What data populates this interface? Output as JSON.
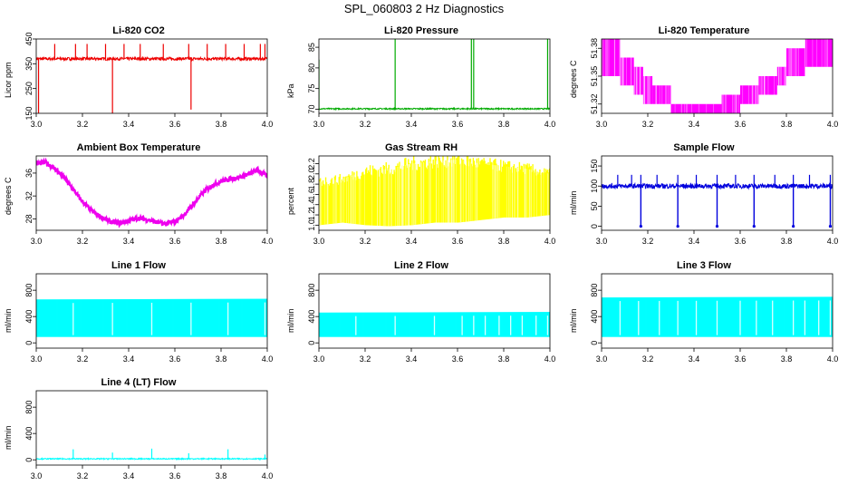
{
  "figure_title": "SPL_060803  2 Hz Diagnostics",
  "colors": {
    "co2": "#ee0000",
    "pressure": "#00aa00",
    "temperature": "#ff00ff",
    "ambient": "#ee00ee",
    "rh": "#ffff00",
    "sample": "#0000dd",
    "line": "#00ffff"
  },
  "chart_data": [
    {
      "id": "co2",
      "type": "line",
      "title": "Li-820 CO2",
      "ylabel": "Licor ppm",
      "x_ticks": [
        "3.0",
        "3.2",
        "3.4",
        "3.6",
        "3.8",
        "4.0"
      ],
      "y_ticks": [
        "150",
        "250",
        "350",
        "450"
      ],
      "xlim": [
        3.0,
        4.0
      ],
      "ylim": [
        150,
        450
      ],
      "color": "#ee0000",
      "series": [
        {
          "name": "CO2",
          "baseline": 370,
          "noise": 6,
          "spikes_up": [
            3.08,
            3.17,
            3.22,
            3.3,
            3.38,
            3.45,
            3.55,
            3.66,
            3.74,
            3.82,
            3.9,
            3.97,
            3.99
          ],
          "spike_top": 430,
          "spikes_down": [
            3.01,
            3.33,
            3.67
          ],
          "spike_bottom": [
            150,
            150,
            165
          ]
        }
      ]
    },
    {
      "id": "pressure",
      "type": "line",
      "title": "Li-820 Pressure",
      "ylabel": "kPa",
      "x_ticks": [
        "3.0",
        "3.2",
        "3.4",
        "3.6",
        "3.8",
        "4.0"
      ],
      "y_ticks": [
        "70",
        "75",
        "80",
        "85"
      ],
      "xlim": [
        3.0,
        4.0
      ],
      "ylim": [
        69,
        87
      ],
      "color": "#00aa00",
      "series": [
        {
          "name": "Pressure",
          "baseline": 70.1,
          "noise": 0.15,
          "spikes_up": [
            3.0,
            3.33,
            3.66,
            3.67,
            3.99
          ],
          "spike_top": [
            82,
            87,
            87,
            87,
            87
          ]
        }
      ]
    },
    {
      "id": "licor_temp",
      "type": "step",
      "title": "Li-820 Temperature",
      "ylabel": "degrees C",
      "x_ticks": [
        "3.0",
        "3.2",
        "3.4",
        "3.6",
        "3.8",
        "4.0"
      ],
      "y_ticks": [
        "51.32",
        "51.35",
        "51.38"
      ],
      "xlim": [
        3.0,
        4.0
      ],
      "ylim": [
        51.31,
        51.39
      ],
      "color": "#ff00ff",
      "levels": [
        {
          "x0": 3.0,
          "x1": 3.08,
          "lo": 51.35,
          "hi": 51.39
        },
        {
          "x0": 3.08,
          "x1": 3.14,
          "lo": 51.34,
          "hi": 51.37
        },
        {
          "x0": 3.14,
          "x1": 3.18,
          "lo": 51.33,
          "hi": 51.36
        },
        {
          "x0": 3.18,
          "x1": 3.22,
          "lo": 51.32,
          "hi": 51.35
        },
        {
          "x0": 3.22,
          "x1": 3.3,
          "lo": 51.32,
          "hi": 51.34
        },
        {
          "x0": 3.3,
          "x1": 3.52,
          "lo": 51.31,
          "hi": 51.32
        },
        {
          "x0": 3.52,
          "x1": 3.6,
          "lo": 51.31,
          "hi": 51.33
        },
        {
          "x0": 3.6,
          "x1": 3.68,
          "lo": 51.32,
          "hi": 51.34
        },
        {
          "x0": 3.68,
          "x1": 3.76,
          "lo": 51.33,
          "hi": 51.35
        },
        {
          "x0": 3.76,
          "x1": 3.8,
          "lo": 51.34,
          "hi": 51.36
        },
        {
          "x0": 3.8,
          "x1": 3.88,
          "lo": 51.35,
          "hi": 51.38
        },
        {
          "x0": 3.88,
          "x1": 4.0,
          "lo": 51.36,
          "hi": 51.39
        }
      ]
    },
    {
      "id": "ambient",
      "type": "line",
      "title": "Ambient Box Temperature",
      "ylabel": "degrees C",
      "x_ticks": [
        "3.0",
        "3.2",
        "3.4",
        "3.6",
        "3.8",
        "4.0"
      ],
      "y_ticks": [
        "28",
        "32",
        "36"
      ],
      "xlim": [
        3.0,
        4.0
      ],
      "ylim": [
        26,
        39
      ],
      "color": "#ee00ee",
      "series": [
        {
          "name": "Ambient",
          "x": [
            3.0,
            3.04,
            3.08,
            3.12,
            3.16,
            3.2,
            3.24,
            3.28,
            3.32,
            3.36,
            3.4,
            3.44,
            3.48,
            3.52,
            3.56,
            3.6,
            3.64,
            3.68,
            3.72,
            3.76,
            3.8,
            3.84,
            3.88,
            3.92,
            3.96,
            4.0
          ],
          "y": [
            37.6,
            37.9,
            36.8,
            35.2,
            33.1,
            31.0,
            29.4,
            28.3,
            27.5,
            27.2,
            27.6,
            28.1,
            27.9,
            27.4,
            27.1,
            27.5,
            28.7,
            30.6,
            32.5,
            33.8,
            34.6,
            35.0,
            35.3,
            35.8,
            36.6,
            35.4
          ],
          "noise": 0.4
        }
      ]
    },
    {
      "id": "rh",
      "type": "band",
      "title": "Gas Stream RH",
      "ylabel": "percent",
      "x_ticks": [
        "3.0",
        "3.2",
        "3.4",
        "3.6",
        "3.8",
        "4.0"
      ],
      "y_ticks": [
        "1.0",
        "1.2",
        "1.4",
        "1.6",
        "1.8",
        "2.0",
        "2.2"
      ],
      "xlim": [
        3.0,
        4.0
      ],
      "ylim": [
        0.9,
        2.35
      ],
      "color": "#ffff00",
      "series": [
        {
          "name": "RH",
          "x": [
            3.0,
            3.1,
            3.2,
            3.3,
            3.4,
            3.5,
            3.6,
            3.7,
            3.8,
            3.9,
            4.0
          ],
          "upper": [
            1.85,
            1.9,
            2.05,
            2.1,
            2.2,
            2.25,
            2.28,
            2.2,
            2.15,
            2.1,
            2.0
          ],
          "lower": [
            1.0,
            1.05,
            1.0,
            0.98,
            1.0,
            1.05,
            1.05,
            1.1,
            1.15,
            1.15,
            1.2
          ]
        }
      ]
    },
    {
      "id": "sample_flow",
      "type": "line",
      "title": "Sample Flow",
      "ylabel": "ml/min",
      "x_ticks": [
        "3.0",
        "3.2",
        "3.4",
        "3.6",
        "3.8",
        "4.0"
      ],
      "y_ticks": [
        "0",
        "50",
        "100",
        "150"
      ],
      "xlim": [
        3.0,
        4.0
      ],
      "ylim": [
        -10,
        175
      ],
      "color": "#0000dd",
      "series": [
        {
          "name": "Sample Flow",
          "baseline": 100,
          "noise": 6,
          "dips": [
            3.17,
            3.33,
            3.5,
            3.66,
            3.83,
            3.99
          ],
          "dip_bottom": 0,
          "spikes_up": [
            3.07,
            3.13,
            3.17,
            3.24,
            3.33,
            3.41,
            3.5,
            3.58,
            3.66,
            3.75,
            3.83,
            3.9,
            3.99
          ],
          "spike_top": 128
        }
      ]
    },
    {
      "id": "line1",
      "type": "band",
      "title": "Line 1 Flow",
      "ylabel": "ml/min",
      "x_ticks": [
        "3.0",
        "3.2",
        "3.4",
        "3.6",
        "3.8",
        "4.0"
      ],
      "y_ticks": [
        "0",
        "400",
        "800"
      ],
      "xlim": [
        3.0,
        4.0
      ],
      "ylim": [
        -80,
        1050
      ],
      "color": "#00ffff",
      "series": [
        {
          "name": "Line 1",
          "x": [
            3.0,
            4.0
          ],
          "upper": [
            660,
            670
          ],
          "lower": [
            90,
            90
          ],
          "gaps": [
            3.16,
            3.33,
            3.5,
            3.67,
            3.83,
            3.99
          ]
        }
      ]
    },
    {
      "id": "line2",
      "type": "band",
      "title": "Line 2 Flow",
      "ylabel": "ml/min",
      "x_ticks": [
        "3.0",
        "3.2",
        "3.4",
        "3.6",
        "3.8",
        "4.0"
      ],
      "y_ticks": [
        "0",
        "400",
        "800"
      ],
      "xlim": [
        3.0,
        4.0
      ],
      "ylim": [
        -80,
        1050
      ],
      "color": "#00ffff",
      "series": [
        {
          "name": "Line 2",
          "x": [
            3.0,
            4.0
          ],
          "upper": [
            460,
            470
          ],
          "lower": [
            90,
            90
          ],
          "gaps": [
            3.16,
            3.33,
            3.5,
            3.62,
            3.67,
            3.72,
            3.78,
            3.83,
            3.88,
            3.94,
            3.99
          ]
        }
      ]
    },
    {
      "id": "line3",
      "type": "band",
      "title": "Line 3 Flow",
      "ylabel": "ml/min",
      "x_ticks": [
        "3.0",
        "3.2",
        "3.4",
        "3.6",
        "3.8",
        "4.0"
      ],
      "y_ticks": [
        "0",
        "400",
        "800"
      ],
      "xlim": [
        3.0,
        4.0
      ],
      "ylim": [
        -80,
        1050
      ],
      "color": "#00ffff",
      "series": [
        {
          "name": "Line 3",
          "x": [
            3.0,
            4.0
          ],
          "upper": [
            690,
            700
          ],
          "lower": [
            90,
            90
          ],
          "gaps": [
            3.08,
            3.16,
            3.25,
            3.33,
            3.41,
            3.5,
            3.6,
            3.67,
            3.74,
            3.83,
            3.88,
            3.94,
            3.99
          ]
        }
      ]
    },
    {
      "id": "line4",
      "type": "line",
      "title": "Line 4 (LT) Flow",
      "ylabel": "ml/min",
      "x_ticks": [
        "3.0",
        "3.2",
        "3.4",
        "3.6",
        "3.8",
        "4.0"
      ],
      "y_ticks": [
        "0",
        "400",
        "800"
      ],
      "xlim": [
        3.0,
        4.0
      ],
      "ylim": [
        -80,
        1050
      ],
      "color": "#00ffff",
      "series": [
        {
          "name": "Line 4",
          "baseline": 15,
          "noise": 8,
          "spikes_up": [
            3.16,
            3.33,
            3.5,
            3.66,
            3.83,
            3.99
          ],
          "spike_top": [
            160,
            110,
            170,
            100,
            160,
            80
          ]
        }
      ]
    }
  ]
}
